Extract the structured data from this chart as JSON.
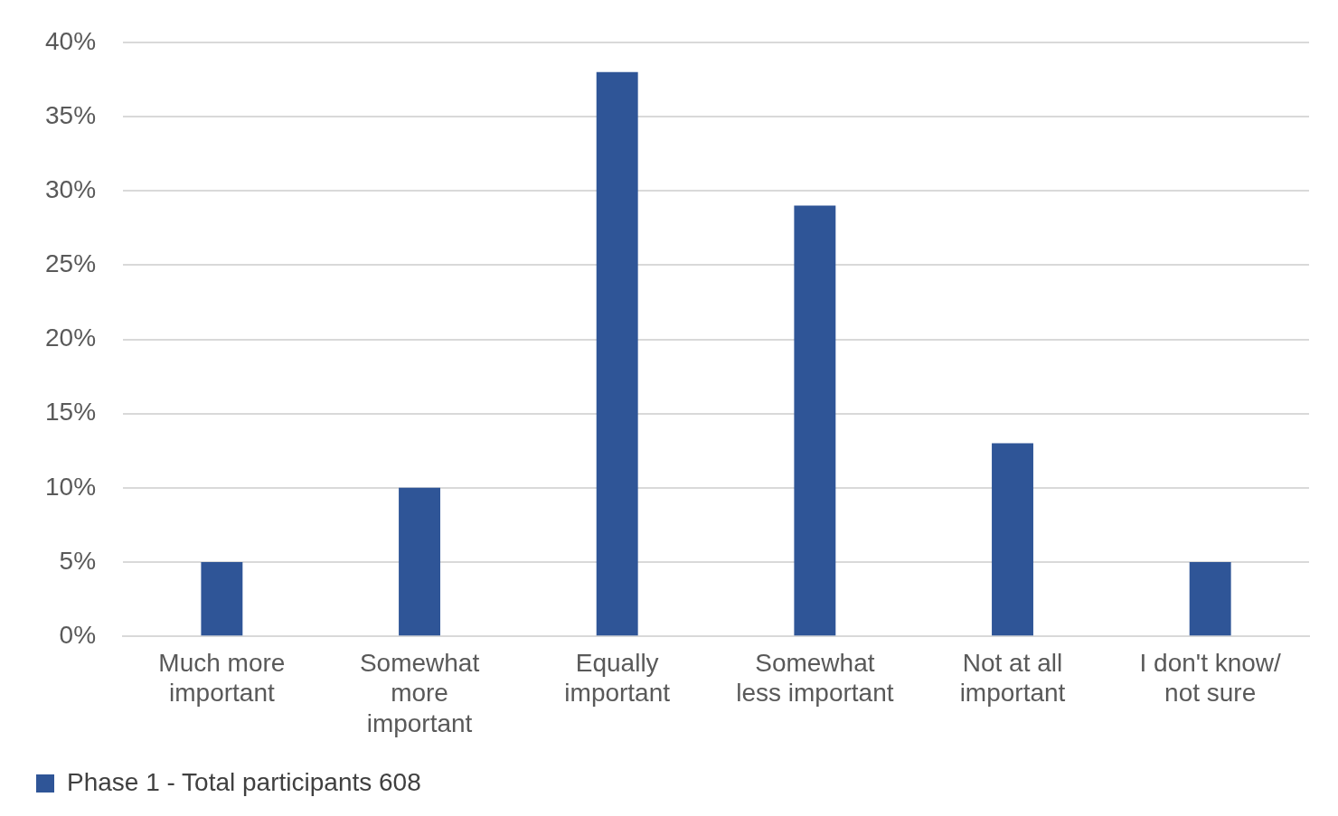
{
  "chart_data": {
    "type": "bar",
    "categories": [
      "Much more important",
      "Somewhat more important",
      "Equally important",
      "Somewhat less important",
      "Not at all important",
      "I don't know/ not sure"
    ],
    "series": [
      {
        "name": "Phase 1 - Total participants 608",
        "color": "#2f5597",
        "values": [
          5,
          10,
          38,
          29,
          13,
          5
        ]
      }
    ],
    "ylim": [
      0,
      40
    ],
    "yticks": [
      {
        "value": 0,
        "label": "0%"
      },
      {
        "value": 5,
        "label": "5%"
      },
      {
        "value": 10,
        "label": "10%"
      },
      {
        "value": 15,
        "label": "15%"
      },
      {
        "value": 20,
        "label": "20%"
      },
      {
        "value": 25,
        "label": "25%"
      },
      {
        "value": 30,
        "label": "30%"
      },
      {
        "value": 35,
        "label": "35%"
      },
      {
        "value": 40,
        "label": "40%"
      }
    ],
    "grid": "y",
    "legend": "bottom left"
  }
}
